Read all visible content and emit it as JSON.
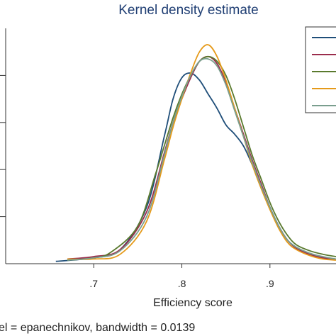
{
  "chart_data": {
    "type": "line",
    "title": "Kernel density estimate",
    "xlabel": "Efficiency score",
    "note": "el = epanechnikov, bandwidth = 0.0139",
    "x_ticks": [
      {
        "value": 0.7,
        "label": ".7"
      },
      {
        "value": 0.8,
        "label": ".8"
      },
      {
        "value": 0.9,
        "label": ".9"
      }
    ],
    "xlim": [
      0.6,
      0.975
    ],
    "ylim": [
      0,
      1
    ],
    "y_ticks": [
      0.2,
      0.4,
      0.6,
      0.8
    ],
    "grid": false,
    "legend": {
      "position": "top-right",
      "entries": 5,
      "labels_visible": false
    },
    "series": [
      {
        "color": "#1f4e79",
        "points": [
          [
            0.657,
            0.01
          ],
          [
            0.7,
            0.025
          ],
          [
            0.73,
            0.06
          ],
          [
            0.76,
            0.24
          ],
          [
            0.78,
            0.54
          ],
          [
            0.79,
            0.7
          ],
          [
            0.8,
            0.79
          ],
          [
            0.81,
            0.81
          ],
          [
            0.82,
            0.78
          ],
          [
            0.83,
            0.72
          ],
          [
            0.84,
            0.66
          ],
          [
            0.85,
            0.59
          ],
          [
            0.86,
            0.55
          ],
          [
            0.87,
            0.5
          ],
          [
            0.88,
            0.42
          ],
          [
            0.89,
            0.33
          ],
          [
            0.9,
            0.24
          ],
          [
            0.91,
            0.16
          ],
          [
            0.92,
            0.1
          ],
          [
            0.93,
            0.07
          ],
          [
            0.945,
            0.04
          ],
          [
            0.96,
            0.025
          ],
          [
            0.975,
            0.02
          ]
        ]
      },
      {
        "color": "#9b2d4d",
        "points": [
          [
            0.67,
            0.02
          ],
          [
            0.7,
            0.03
          ],
          [
            0.73,
            0.06
          ],
          [
            0.76,
            0.22
          ],
          [
            0.78,
            0.47
          ],
          [
            0.79,
            0.6
          ],
          [
            0.8,
            0.7
          ],
          [
            0.81,
            0.79
          ],
          [
            0.82,
            0.86
          ],
          [
            0.83,
            0.88
          ],
          [
            0.84,
            0.85
          ],
          [
            0.85,
            0.77
          ],
          [
            0.86,
            0.66
          ],
          [
            0.87,
            0.55
          ],
          [
            0.88,
            0.44
          ],
          [
            0.89,
            0.34
          ],
          [
            0.9,
            0.24
          ],
          [
            0.91,
            0.16
          ],
          [
            0.92,
            0.1
          ],
          [
            0.93,
            0.065
          ],
          [
            0.945,
            0.04
          ],
          [
            0.96,
            0.025
          ],
          [
            0.975,
            0.02
          ]
        ]
      },
      {
        "color": "#5a7a2e",
        "points": [
          [
            0.67,
            0.015
          ],
          [
            0.7,
            0.025
          ],
          [
            0.72,
            0.05
          ],
          [
            0.75,
            0.16
          ],
          [
            0.77,
            0.38
          ],
          [
            0.78,
            0.5
          ],
          [
            0.79,
            0.62
          ],
          [
            0.8,
            0.72
          ],
          [
            0.81,
            0.8
          ],
          [
            0.82,
            0.86
          ],
          [
            0.83,
            0.88
          ],
          [
            0.84,
            0.86
          ],
          [
            0.85,
            0.8
          ],
          [
            0.86,
            0.7
          ],
          [
            0.87,
            0.58
          ],
          [
            0.88,
            0.46
          ],
          [
            0.89,
            0.36
          ],
          [
            0.9,
            0.26
          ],
          [
            0.91,
            0.18
          ],
          [
            0.92,
            0.12
          ],
          [
            0.93,
            0.08
          ],
          [
            0.945,
            0.055
          ],
          [
            0.96,
            0.04
          ],
          [
            0.975,
            0.03
          ]
        ]
      },
      {
        "color": "#e59a1a",
        "points": [
          [
            0.67,
            0.02
          ],
          [
            0.7,
            0.02
          ],
          [
            0.73,
            0.04
          ],
          [
            0.76,
            0.18
          ],
          [
            0.78,
            0.44
          ],
          [
            0.79,
            0.58
          ],
          [
            0.8,
            0.7
          ],
          [
            0.81,
            0.81
          ],
          [
            0.82,
            0.9
          ],
          [
            0.83,
            0.93
          ],
          [
            0.84,
            0.88
          ],
          [
            0.85,
            0.78
          ],
          [
            0.86,
            0.66
          ],
          [
            0.87,
            0.54
          ],
          [
            0.88,
            0.42
          ],
          [
            0.89,
            0.32
          ],
          [
            0.9,
            0.23
          ],
          [
            0.91,
            0.15
          ],
          [
            0.92,
            0.09
          ],
          [
            0.93,
            0.06
          ],
          [
            0.945,
            0.035
          ],
          [
            0.96,
            0.02
          ],
          [
            0.975,
            0.015
          ]
        ]
      },
      {
        "color": "#7a9e8e",
        "points": [
          [
            0.67,
            0.015
          ],
          [
            0.7,
            0.025
          ],
          [
            0.73,
            0.055
          ],
          [
            0.76,
            0.2
          ],
          [
            0.78,
            0.46
          ],
          [
            0.79,
            0.6
          ],
          [
            0.8,
            0.71
          ],
          [
            0.81,
            0.8
          ],
          [
            0.82,
            0.86
          ],
          [
            0.83,
            0.87
          ],
          [
            0.84,
            0.84
          ],
          [
            0.85,
            0.76
          ],
          [
            0.86,
            0.65
          ],
          [
            0.87,
            0.54
          ],
          [
            0.88,
            0.43
          ],
          [
            0.89,
            0.33
          ],
          [
            0.9,
            0.24
          ],
          [
            0.91,
            0.16
          ],
          [
            0.92,
            0.1
          ],
          [
            0.93,
            0.07
          ],
          [
            0.945,
            0.045
          ],
          [
            0.96,
            0.03
          ],
          [
            0.975,
            0.02
          ]
        ]
      }
    ]
  }
}
